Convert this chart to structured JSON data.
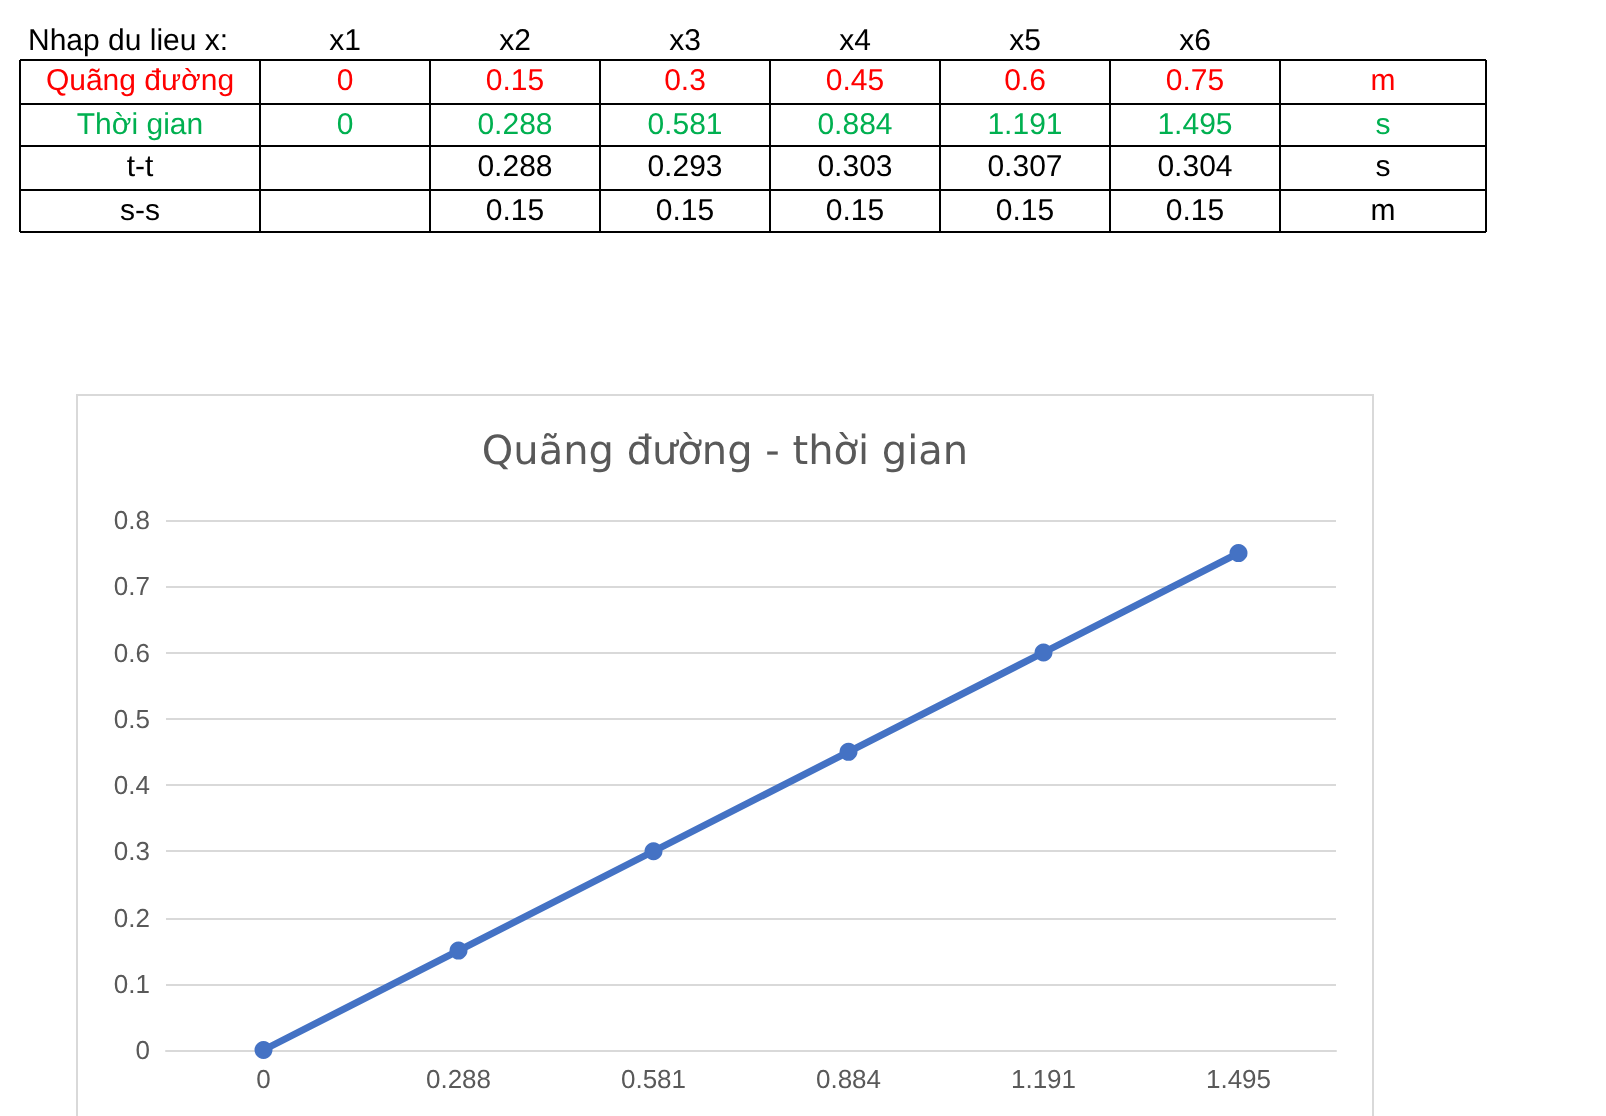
{
  "chart_data": {
    "type": "line",
    "title": "Quãng đường - thời gian",
    "categories": [
      "0",
      "0.288",
      "0.581",
      "0.884",
      "1.191",
      "1.495"
    ],
    "values": [
      0,
      0.15,
      0.3,
      0.45,
      0.6,
      0.75
    ],
    "color": "#4472c4",
    "marker": "circle",
    "line_style": "solid",
    "ylim": [
      0,
      0.8
    ],
    "yticks": [
      0,
      0.1,
      0.2,
      0.3,
      0.4,
      0.5,
      0.6,
      0.7,
      0.8
    ],
    "grid": "y",
    "annotations": [
      "Nhap du lieu x:",
      "x1",
      "x2",
      "x3",
      "x4",
      "x5",
      "x6",
      "Quãng đường",
      "0",
      "0.15",
      "0.3",
      "0.45",
      "0.6",
      "0.75",
      "m",
      "Thời gian",
      "0",
      "0.288",
      "0.581",
      "0.884",
      "1.191",
      "1.495",
      "s",
      "t-t",
      "0.288",
      "0.293",
      "0.303",
      "0.307",
      "0.304",
      "s",
      "s-s",
      "0.15",
      "0.15",
      "0.15",
      "0.15",
      "0.15",
      "m"
    ]
  }
}
